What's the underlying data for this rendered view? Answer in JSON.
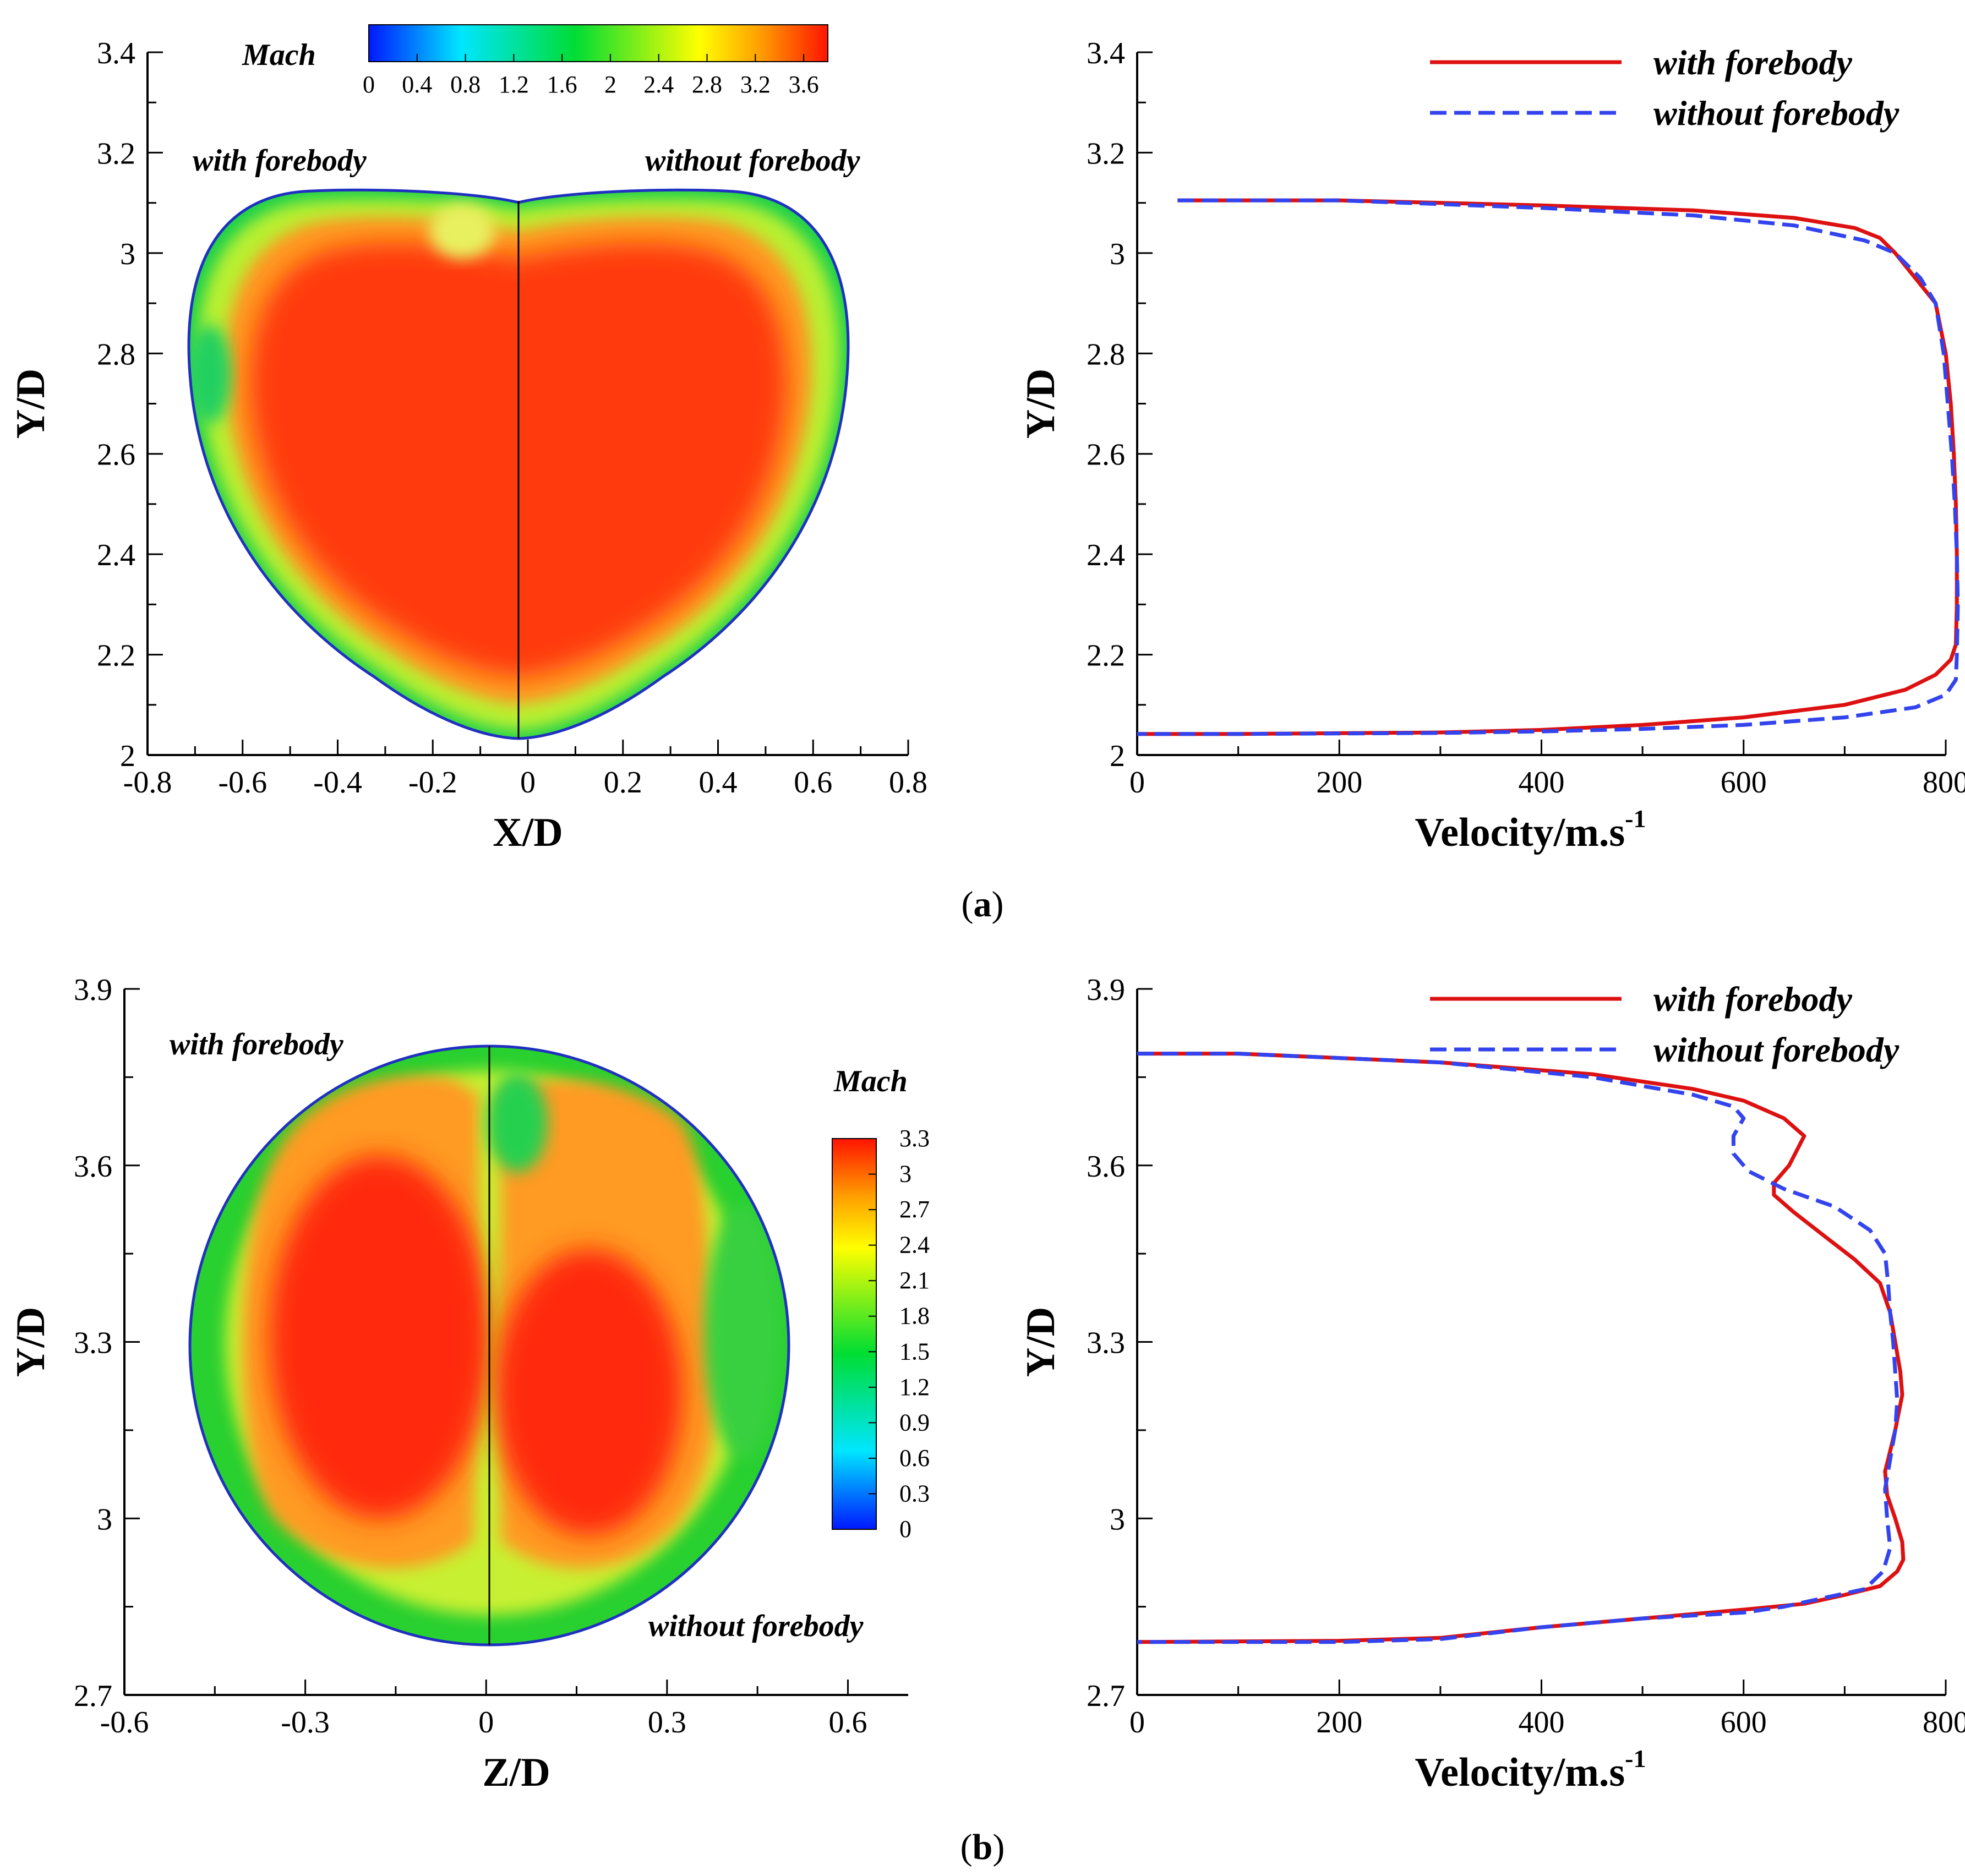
{
  "figure": {
    "captions": [
      "(a)",
      "(b)"
    ],
    "caption_parts": [
      {
        "open": "(",
        "letter": "a",
        "close": ")"
      },
      {
        "open": "(",
        "letter": "b",
        "close": ")"
      }
    ]
  },
  "colors": {
    "with_forebody": "#dd1111",
    "without_forebody": "#3344ee",
    "axis": "#000000",
    "mach_scale": [
      "#0018ff",
      "#00e6ff",
      "#00dd33",
      "#ffff00",
      "#ffa000",
      "#ff1400"
    ]
  },
  "chart_data": [
    {
      "panel": "a-left",
      "type": "heatmap",
      "title": "",
      "xlabel": "X/D",
      "ylabel": "Y/D",
      "xlim": [
        -0.8,
        0.8
      ],
      "ylim": [
        2.0,
        3.4
      ],
      "xticks": [
        "-0.8",
        "-0.6",
        "-0.4",
        "-0.2",
        "0",
        "0.2",
        "0.4",
        "0.6",
        "0.8"
      ],
      "yticks": [
        "2",
        "2.2",
        "2.4",
        "2.6",
        "2.8",
        "3",
        "3.2",
        "3.4"
      ],
      "annotations": [
        "with forebody",
        "without forebody"
      ],
      "colorbar": {
        "label": "Mach",
        "min": 0,
        "max": 3.8,
        "ticks": [
          "0",
          "0.4",
          "0.8",
          "1.2",
          "1.6",
          "2",
          "2.4",
          "2.8",
          "3.2",
          "3.6"
        ]
      },
      "region": "heart-shaped inlet cross-section spanning X/D -0.68 to 0.68, Y/D 2.04 to 3.12; core Mach ~3.5, boundary Mach ~1.5-2.4"
    },
    {
      "panel": "a-right",
      "type": "line",
      "title": "",
      "xlabel": "Velocity/m.s",
      "xlabel_sup": "-1",
      "ylabel": "Y/D",
      "xlim": [
        0,
        800
      ],
      "ylim": [
        2.0,
        3.4
      ],
      "xticks": [
        "0",
        "200",
        "400",
        "600",
        "800"
      ],
      "yticks": [
        "2",
        "2.2",
        "2.4",
        "2.6",
        "2.8",
        "3",
        "3.2",
        "3.4"
      ],
      "legend": [
        "with forebody",
        "without forebody"
      ],
      "series": [
        {
          "name": "with forebody",
          "style": "solid",
          "points": [
            [
              40,
              3.105
            ],
            [
              200,
              3.105
            ],
            [
              400,
              3.095
            ],
            [
              550,
              3.085
            ],
            [
              650,
              3.07
            ],
            [
              710,
              3.05
            ],
            [
              735,
              3.03
            ],
            [
              750,
              3.0
            ],
            [
              770,
              2.95
            ],
            [
              790,
              2.9
            ],
            [
              800,
              2.8
            ],
            [
              805,
              2.7
            ],
            [
              808,
              2.6
            ],
            [
              810,
              2.5
            ],
            [
              811,
              2.4
            ],
            [
              811,
              2.3
            ],
            [
              810,
              2.22
            ],
            [
              805,
              2.19
            ],
            [
              790,
              2.16
            ],
            [
              760,
              2.13
            ],
            [
              700,
              2.1
            ],
            [
              600,
              2.075
            ],
            [
              500,
              2.06
            ],
            [
              400,
              2.05
            ],
            [
              300,
              2.045
            ],
            [
              100,
              2.042
            ],
            [
              0,
              2.042
            ]
          ]
        },
        {
          "name": "without forebody",
          "style": "dashed",
          "points": [
            [
              40,
              3.105
            ],
            [
              200,
              3.105
            ],
            [
              400,
              3.09
            ],
            [
              550,
              3.075
            ],
            [
              650,
              3.055
            ],
            [
              720,
              3.025
            ],
            [
              750,
              3.0
            ],
            [
              775,
              2.95
            ],
            [
              790,
              2.9
            ],
            [
              798,
              2.8
            ],
            [
              802,
              2.7
            ],
            [
              806,
              2.6
            ],
            [
              809,
              2.5
            ],
            [
              811,
              2.4
            ],
            [
              812,
              2.3
            ],
            [
              811,
              2.2
            ],
            [
              810,
              2.15
            ],
            [
              800,
              2.12
            ],
            [
              770,
              2.095
            ],
            [
              700,
              2.075
            ],
            [
              600,
              2.06
            ],
            [
              500,
              2.052
            ],
            [
              400,
              2.047
            ],
            [
              300,
              2.044
            ],
            [
              100,
              2.042
            ],
            [
              0,
              2.042
            ]
          ]
        }
      ]
    },
    {
      "panel": "b-left",
      "type": "heatmap",
      "title": "",
      "xlabel": "Z/D",
      "ylabel": "Y/D",
      "xlim": [
        -0.6,
        0.7
      ],
      "ylim": [
        2.7,
        3.9
      ],
      "xticks": [
        "-0.6",
        "-0.3",
        "0",
        "0.3",
        "0.6"
      ],
      "yticks": [
        "2.7",
        "3",
        "3.3",
        "3.6",
        "3.9"
      ],
      "annotations": [
        "with forebody",
        "without forebody"
      ],
      "colorbar": {
        "label": "Mach",
        "min": 0,
        "max": 3.3,
        "ticks": [
          "3.3",
          "3",
          "2.7",
          "2.4",
          "2.1",
          "1.8",
          "1.5",
          "1.2",
          "0.9",
          "0.6",
          "0.3",
          "0"
        ]
      },
      "region": "circular cross-section centred at (0, 3.29), radius ~0.5 D; core Mach ~3.1-3.3, boundary Mach ~1.5"
    },
    {
      "panel": "b-right",
      "type": "line",
      "title": "",
      "xlabel": "Velocity/m.s",
      "xlabel_sup": "-1",
      "ylabel": "Y/D",
      "xlim": [
        0,
        800
      ],
      "ylim": [
        2.7,
        3.9
      ],
      "xticks": [
        "0",
        "200",
        "400",
        "600",
        "800"
      ],
      "yticks": [
        "2.7",
        "3",
        "3.3",
        "3.6",
        "3.9"
      ],
      "legend": [
        "with forebody",
        "without forebody"
      ],
      "series": [
        {
          "name": "with forebody",
          "style": "solid",
          "points": [
            [
              0,
              3.79
            ],
            [
              100,
              3.79
            ],
            [
              300,
              3.775
            ],
            [
              450,
              3.755
            ],
            [
              550,
              3.73
            ],
            [
              600,
              3.71
            ],
            [
              640,
              3.68
            ],
            [
              660,
              3.65
            ],
            [
              645,
              3.6
            ],
            [
              630,
              3.57
            ],
            [
              630,
              3.55
            ],
            [
              650,
              3.52
            ],
            [
              680,
              3.48
            ],
            [
              710,
              3.44
            ],
            [
              735,
              3.4
            ],
            [
              745,
              3.35
            ],
            [
              750,
              3.3
            ],
            [
              755,
              3.25
            ],
            [
              757,
              3.21
            ],
            [
              750,
              3.15
            ],
            [
              743,
              3.1
            ],
            [
              740,
              3.08
            ],
            [
              742,
              3.04
            ],
            [
              750,
              3.0
            ],
            [
              757,
              2.96
            ],
            [
              758,
              2.93
            ],
            [
              752,
              2.91
            ],
            [
              735,
              2.885
            ],
            [
              700,
              2.87
            ],
            [
              660,
              2.855
            ],
            [
              600,
              2.845
            ],
            [
              500,
              2.83
            ],
            [
              400,
              2.815
            ],
            [
              300,
              2.797
            ],
            [
              200,
              2.792
            ],
            [
              0,
              2.79
            ]
          ]
        },
        {
          "name": "without forebody",
          "style": "dashed",
          "points": [
            [
              0,
              3.79
            ],
            [
              100,
              3.79
            ],
            [
              300,
              3.775
            ],
            [
              450,
              3.75
            ],
            [
              550,
              3.72
            ],
            [
              590,
              3.7
            ],
            [
              600,
              3.68
            ],
            [
              590,
              3.65
            ],
            [
              590,
              3.62
            ],
            [
              605,
              3.59
            ],
            [
              640,
              3.56
            ],
            [
              690,
              3.53
            ],
            [
              725,
              3.49
            ],
            [
              740,
              3.45
            ],
            [
              743,
              3.4
            ],
            [
              745,
              3.35
            ],
            [
              748,
              3.3
            ],
            [
              750,
              3.25
            ],
            [
              752,
              3.2
            ],
            [
              750,
              3.15
            ],
            [
              745,
              3.1
            ],
            [
              740,
              3.05
            ],
            [
              742,
              3.0
            ],
            [
              745,
              2.95
            ],
            [
              738,
              2.91
            ],
            [
              720,
              2.88
            ],
            [
              680,
              2.865
            ],
            [
              640,
              2.85
            ],
            [
              600,
              2.84
            ],
            [
              500,
              2.83
            ],
            [
              400,
              2.815
            ],
            [
              300,
              2.795
            ],
            [
              200,
              2.79
            ],
            [
              0,
              2.79
            ]
          ]
        }
      ]
    }
  ]
}
